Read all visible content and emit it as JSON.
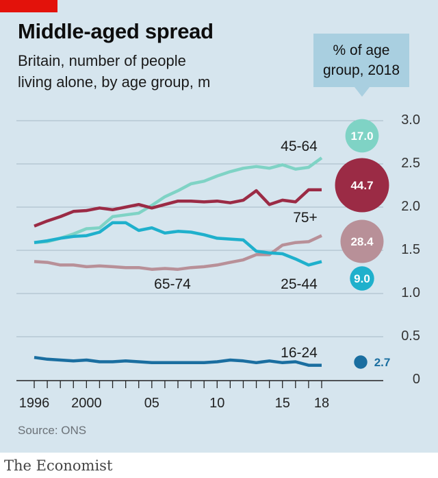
{
  "header": {
    "title": "Middle-aged spread",
    "subtitle_line1": "Britain, number of people",
    "subtitle_line2": "living alone, by age group, m"
  },
  "callout": {
    "line1": "% of age",
    "line2": "group, 2018"
  },
  "source": "Source: ONS",
  "footer": {
    "brand": "The Economist"
  },
  "colors": {
    "panel": "#d6e5ee",
    "accent_red": "#e3120b",
    "s45_64": "#7fd3c5",
    "s75plus": "#9b2b45",
    "s65_74": "#b89098",
    "s25_44": "#1fb0cc",
    "s16_24": "#1a6ea0",
    "grid": "#a6b9c6"
  },
  "chart_data": {
    "type": "line",
    "title": "Middle-aged spread",
    "subtitle": "Britain, number of people living alone, by age group, m",
    "x": [
      1996,
      1997,
      1998,
      1999,
      2000,
      2001,
      2002,
      2003,
      2004,
      2005,
      2006,
      2007,
      2008,
      2009,
      2010,
      2011,
      2012,
      2013,
      2014,
      2015,
      2016,
      2017,
      2018
    ],
    "x_tick_labels": [
      "1996",
      "2000",
      "05",
      "10",
      "15",
      "18"
    ],
    "x_tick_values": [
      1996,
      2000,
      2005,
      2010,
      2015,
      2018
    ],
    "ylim": [
      0,
      3.0
    ],
    "y_tick_labels": [
      "0",
      "0.5",
      "1.0",
      "1.5",
      "2.0",
      "2.5",
      "3.0"
    ],
    "y_tick_values": [
      0,
      0.5,
      1.0,
      1.5,
      2.0,
      2.5,
      3.0
    ],
    "grid": true,
    "series": [
      {
        "name": "45-64",
        "color_key": "s45_64",
        "values": [
          1.59,
          1.6,
          1.64,
          1.69,
          1.75,
          1.76,
          1.89,
          1.91,
          1.93,
          2.02,
          2.12,
          2.19,
          2.27,
          2.3,
          2.36,
          2.41,
          2.45,
          2.47,
          2.45,
          2.49,
          2.44,
          2.46,
          2.57
        ],
        "pct_2018": "17.0"
      },
      {
        "name": "75+",
        "color_key": "s75plus",
        "values": [
          1.78,
          1.84,
          1.89,
          1.95,
          1.96,
          1.99,
          1.97,
          2.0,
          2.03,
          1.99,
          2.03,
          2.07,
          2.07,
          2.06,
          2.07,
          2.05,
          2.08,
          2.19,
          2.03,
          2.08,
          2.06,
          2.2,
          2.2
        ],
        "pct_2018": "44.7"
      },
      {
        "name": "65-74",
        "color_key": "s65_74",
        "values": [
          1.37,
          1.36,
          1.33,
          1.33,
          1.31,
          1.32,
          1.31,
          1.3,
          1.3,
          1.28,
          1.29,
          1.28,
          1.3,
          1.31,
          1.33,
          1.36,
          1.39,
          1.45,
          1.45,
          1.56,
          1.59,
          1.6,
          1.67
        ],
        "pct_2018": "28.4"
      },
      {
        "name": "25-44",
        "color_key": "s25_44",
        "values": [
          1.59,
          1.61,
          1.64,
          1.66,
          1.67,
          1.71,
          1.82,
          1.82,
          1.73,
          1.76,
          1.7,
          1.72,
          1.71,
          1.68,
          1.64,
          1.63,
          1.62,
          1.49,
          1.47,
          1.46,
          1.4,
          1.33,
          1.37
        ],
        "pct_2018": "9.0"
      },
      {
        "name": "16-24",
        "color_key": "s16_24",
        "values": [
          0.26,
          0.24,
          0.23,
          0.22,
          0.23,
          0.21,
          0.21,
          0.22,
          0.21,
          0.2,
          0.2,
          0.2,
          0.2,
          0.2,
          0.21,
          0.23,
          0.22,
          0.2,
          0.22,
          0.2,
          0.21,
          0.17,
          0.17
        ],
        "pct_2018": "2.7"
      }
    ]
  }
}
